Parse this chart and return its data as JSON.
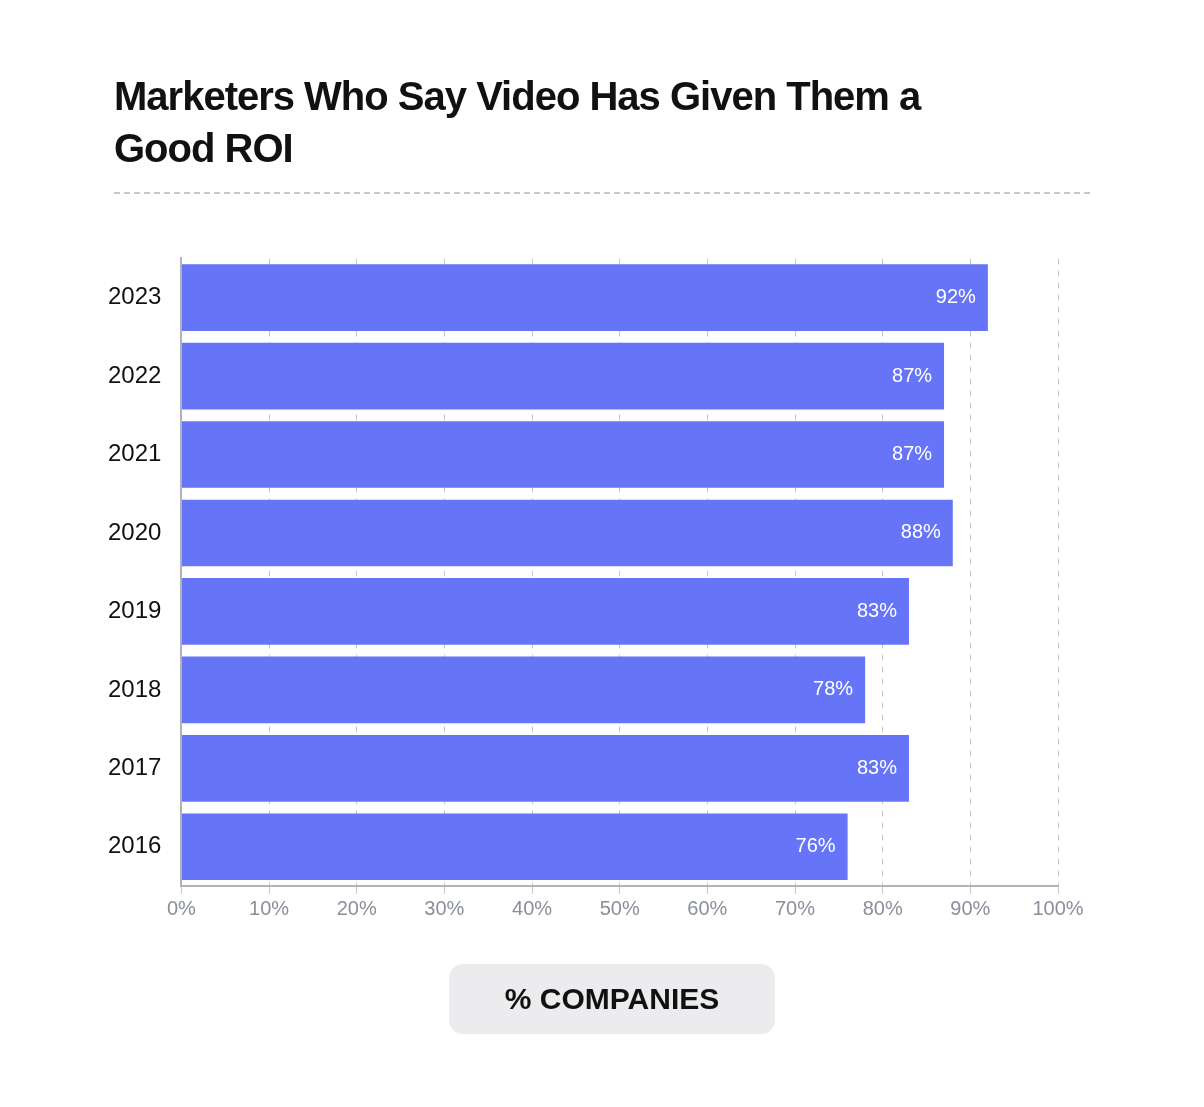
{
  "chart_data": {
    "type": "bar",
    "orientation": "horizontal",
    "title": "Marketers Who Say Video Has Given Them a Good ROI",
    "xlabel": "% COMPANIES",
    "categories": [
      "2023",
      "2022",
      "2021",
      "2020",
      "2019",
      "2018",
      "2017",
      "2016"
    ],
    "values": [
      92,
      87,
      87,
      88,
      83,
      78,
      83,
      76
    ],
    "color": "#6675f7",
    "xlim": [
      0,
      100
    ],
    "xticks": [
      {
        "value": 0,
        "label": "0%"
      },
      {
        "value": 10,
        "label": "10%"
      },
      {
        "value": 20,
        "label": "20%"
      },
      {
        "value": 30,
        "label": "30%"
      },
      {
        "value": 40,
        "label": "40%"
      },
      {
        "value": 50,
        "label": "50%"
      },
      {
        "value": 60,
        "label": "60%"
      },
      {
        "value": 70,
        "label": "70%"
      },
      {
        "value": 80,
        "label": "80%"
      },
      {
        "value": 90,
        "label": "90%"
      },
      {
        "value": 100,
        "label": "100%"
      }
    ],
    "value_labels": [
      "92%",
      "87%",
      "87%",
      "88%",
      "83%",
      "78%",
      "83%",
      "76%"
    ],
    "grid": "x",
    "legend": false
  }
}
